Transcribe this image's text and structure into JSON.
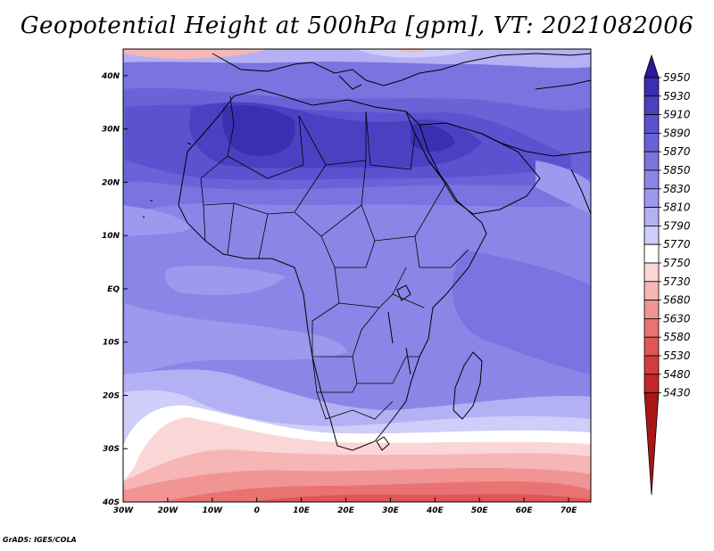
{
  "chart_data": {
    "type": "heatmap",
    "title": "Geopotential Height at 500hPa [gpm], VT: 2021082006",
    "variable": "Geopotential Height",
    "level": "500hPa",
    "units": "gpm",
    "valid_time": "2021082006",
    "x_ticks": [
      {
        "value": -30,
        "label": "30W"
      },
      {
        "value": -20,
        "label": "20W"
      },
      {
        "value": -10,
        "label": "10W"
      },
      {
        "value": 0,
        "label": "0"
      },
      {
        "value": 10,
        "label": "10E"
      },
      {
        "value": 20,
        "label": "20E"
      },
      {
        "value": 30,
        "label": "30E"
      },
      {
        "value": 40,
        "label": "40E"
      },
      {
        "value": 50,
        "label": "50E"
      },
      {
        "value": 60,
        "label": "60E"
      },
      {
        "value": 70,
        "label": "70E"
      }
    ],
    "y_ticks": [
      {
        "value": 40,
        "label": "40N"
      },
      {
        "value": 30,
        "label": "30N"
      },
      {
        "value": 20,
        "label": "20N"
      },
      {
        "value": 10,
        "label": "10N"
      },
      {
        "value": 0,
        "label": "EQ"
      },
      {
        "value": -10,
        "label": "10S"
      },
      {
        "value": -20,
        "label": "20S"
      },
      {
        "value": -30,
        "label": "30S"
      },
      {
        "value": -40,
        "label": "40S"
      }
    ],
    "xlim": [
      -30,
      75
    ],
    "ylim": [
      -40,
      45
    ],
    "colorbar": {
      "levels": [
        5950,
        5930,
        5910,
        5890,
        5870,
        5850,
        5830,
        5810,
        5790,
        5770,
        5750,
        5730,
        5680,
        5630,
        5580,
        5530,
        5480,
        5430
      ],
      "colors": [
        "#2b1a9c",
        "#3a2fb2",
        "#4a41c2",
        "#5a52cf",
        "#6a63d8",
        "#7a74e0",
        "#8a86e7",
        "#9d99ee",
        "#b3b0f4",
        "#cfcdf9",
        "#ffffff",
        "#fbd6d6",
        "#f6b6b6",
        "#f09494",
        "#e97272",
        "#e05555",
        "#d43b3b",
        "#c42626",
        "#aa1616"
      ]
    },
    "credit": "GrADS: IGES/COLA"
  }
}
